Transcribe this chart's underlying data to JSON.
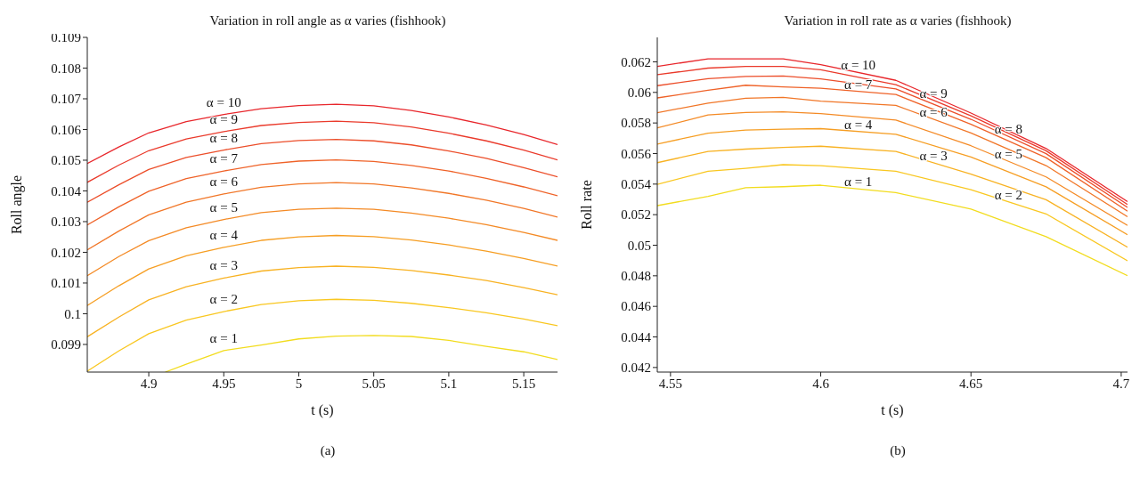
{
  "chart_data": [
    {
      "type": "line",
      "title": "Variation in roll angle as α varies (fishhook)",
      "xlabel": "t (s)",
      "ylabel": "Roll angle",
      "x": [
        4.859,
        4.88,
        4.9,
        4.925,
        4.95,
        4.975,
        5.0,
        5.025,
        5.05,
        5.075,
        5.1,
        5.125,
        5.15,
        5.1725
      ],
      "series": [
        {
          "name": "α = 10",
          "color": "#e8262b",
          "values": [
            0.10489,
            0.10543,
            0.10589,
            0.10626,
            0.10649,
            0.10668,
            0.10678,
            0.10682,
            0.10677,
            0.10662,
            0.10641,
            0.10615,
            0.10584,
            0.10551
          ]
        },
        {
          "name": "α = 9",
          "color": "#ea3a2b",
          "values": [
            0.10428,
            0.10484,
            0.10531,
            0.10569,
            0.10593,
            0.10613,
            0.10623,
            0.10627,
            0.10622,
            0.10608,
            0.10588,
            0.10563,
            0.10533,
            0.10501
          ]
        },
        {
          "name": "α = 8",
          "color": "#ec4e2a",
          "values": [
            0.10363,
            0.1042,
            0.1047,
            0.10509,
            0.10533,
            0.10554,
            0.10564,
            0.10568,
            0.10563,
            0.1055,
            0.1053,
            0.10506,
            0.10476,
            0.10446
          ]
        },
        {
          "name": "α = 7",
          "color": "#ef6228",
          "values": [
            0.10289,
            0.10348,
            0.10399,
            0.1044,
            0.10465,
            0.10486,
            0.10497,
            0.10501,
            0.10496,
            0.10483,
            0.10465,
            0.10441,
            0.10413,
            0.10384
          ]
        },
        {
          "name": "α = 6",
          "color": "#f17627",
          "values": [
            0.10208,
            0.10269,
            0.10322,
            0.10363,
            0.1039,
            0.10412,
            0.10423,
            0.10427,
            0.10423,
            0.1041,
            0.10392,
            0.1037,
            0.10343,
            0.10315
          ]
        },
        {
          "name": "α = 5",
          "color": "#f48a25",
          "values": [
            0.10124,
            0.10186,
            0.10238,
            0.1028,
            0.10307,
            0.10329,
            0.1034,
            0.10344,
            0.1034,
            0.10328,
            0.10311,
            0.1029,
            0.10265,
            0.10239
          ]
        },
        {
          "name": "α = 4",
          "color": "#f69e23",
          "values": [
            0.10027,
            0.10091,
            0.10146,
            0.10189,
            0.10216,
            0.10239,
            0.1025,
            0.10255,
            0.10251,
            0.1024,
            0.10224,
            0.10204,
            0.1018,
            0.10155
          ]
        },
        {
          "name": "α = 3",
          "color": "#f8b222",
          "values": [
            0.09925,
            0.09989,
            0.10045,
            0.10088,
            0.10116,
            0.10139,
            0.1015,
            0.10155,
            0.10151,
            0.10141,
            0.10126,
            0.10108,
            0.10085,
            0.10062
          ]
        },
        {
          "name": "α = 2",
          "color": "#f9c720",
          "values": [
            0.09813,
            0.09879,
            0.09935,
            0.09979,
            0.10007,
            0.1003,
            0.10042,
            0.10047,
            0.10044,
            0.10034,
            0.1002,
            0.10003,
            0.09983,
            0.09961
          ]
        },
        {
          "name": "α = 1",
          "color": "#f2dc1e",
          "x": [
            4.911,
            4.925,
            4.95,
            4.975,
            5.0,
            5.025,
            5.05,
            5.075,
            5.1,
            5.125,
            5.15,
            5.1725
          ],
          "values": [
            0.0981,
            0.09836,
            0.0988,
            0.09898,
            0.09918,
            0.09927,
            0.09929,
            0.09926,
            0.09913,
            0.09894,
            0.09876,
            0.09851
          ]
        }
      ],
      "xlim": [
        4.859,
        5.1725
      ],
      "xticks": [
        4.9,
        4.95,
        5,
        5.05,
        5.1,
        5.15
      ],
      "ylim": [
        0.0981,
        0.109
      ],
      "yticks": [
        0.099,
        0.1,
        0.101,
        0.102,
        0.103,
        0.104,
        0.105,
        0.106,
        0.107,
        0.108,
        0.109
      ],
      "grid": false,
      "annotations": [
        "(a)"
      ]
    },
    {
      "type": "line",
      "title": "Variation in roll rate as α varies (fishhook)",
      "xlabel": "t (s)",
      "ylabel": "Roll rate",
      "x": [
        4.5456,
        4.5625,
        4.575,
        4.5875,
        4.6,
        4.625,
        4.65,
        4.675,
        4.7021
      ],
      "series": [
        {
          "name": "α = 10",
          "color": "#e8262b",
          "values": [
            0.0617,
            0.0622,
            0.0622,
            0.0622,
            0.06181,
            0.06079,
            0.05865,
            0.05633,
            0.05285
          ]
        },
        {
          "name": "α = 9",
          "color": "#ea3a2b",
          "values": [
            0.06116,
            0.06159,
            0.0617,
            0.0617,
            0.06148,
            0.06051,
            0.05847,
            0.05618,
            0.05266
          ]
        },
        {
          "name": "α = 8",
          "color": "#ec4e2a",
          "values": [
            0.06044,
            0.0609,
            0.06105,
            0.06107,
            0.06088,
            0.06023,
            0.05824,
            0.05599,
            0.05248
          ]
        },
        {
          "name": "α = 7",
          "color": "#ef6228",
          "values": [
            0.05964,
            0.06014,
            0.06047,
            0.06036,
            0.06027,
            0.05986,
            0.05791,
            0.05573,
            0.05223
          ]
        },
        {
          "name": "α = 6",
          "color": "#f17627",
          "values": [
            0.05867,
            0.0593,
            0.05962,
            0.05968,
            0.05943,
            0.05915,
            0.05735,
            0.05521,
            0.05186
          ]
        },
        {
          "name": "α = 5",
          "color": "#f48a25",
          "values": [
            0.05768,
            0.05852,
            0.05869,
            0.05873,
            0.05861,
            0.05819,
            0.05651,
            0.05447,
            0.0513
          ]
        },
        {
          "name": "α = 4",
          "color": "#f69e23",
          "values": [
            0.05662,
            0.05733,
            0.05754,
            0.05759,
            0.05763,
            0.05726,
            0.05577,
            0.05382,
            0.05069
          ]
        },
        {
          "name": "α = 3",
          "color": "#f8b222",
          "values": [
            0.0554,
            0.05614,
            0.05629,
            0.0564,
            0.05648,
            0.05614,
            0.05465,
            0.05298,
            0.04987
          ]
        },
        {
          "name": "α = 2",
          "color": "#f9c720",
          "values": [
            0.05398,
            0.05484,
            0.05503,
            0.05527,
            0.05521,
            0.05484,
            0.05363,
            0.05205,
            0.04898
          ]
        },
        {
          "name": "α = 1",
          "color": "#f2dc1e",
          "values": [
            0.05259,
            0.0532,
            0.05376,
            0.05383,
            0.05393,
            0.05344,
            0.05237,
            0.05056,
            0.04801
          ]
        }
      ],
      "xlim": [
        4.5456,
        4.7021
      ],
      "xticks": [
        4.55,
        4.6,
        4.65,
        4.7
      ],
      "ylim": [
        0.0417,
        0.0636
      ],
      "yticks": [
        0.042,
        0.044,
        0.046,
        0.048,
        0.05,
        0.052,
        0.054,
        0.056,
        0.058,
        0.06,
        0.062
      ],
      "grid": false,
      "annotations": [
        "(b)"
      ]
    }
  ]
}
